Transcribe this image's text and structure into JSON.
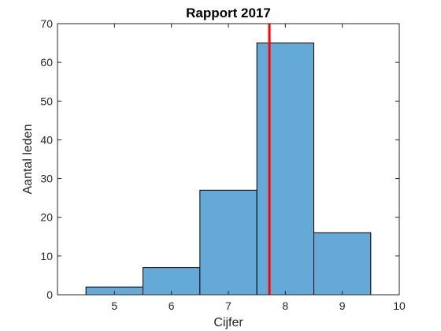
{
  "chart_data": {
    "type": "bar",
    "title": "Rapport 2017",
    "xlabel": "Cijfer",
    "ylabel": "Aantal leden",
    "xlim": [
      4,
      10
    ],
    "ylim": [
      0,
      70
    ],
    "xticks": [
      5,
      6,
      7,
      8,
      9,
      10
    ],
    "yticks": [
      0,
      10,
      20,
      30,
      40,
      50,
      60,
      70
    ],
    "bins": [
      {
        "x0": 4.5,
        "x1": 5.5,
        "value": 2
      },
      {
        "x0": 5.5,
        "x1": 6.5,
        "value": 7
      },
      {
        "x0": 6.5,
        "x1": 7.5,
        "value": 27
      },
      {
        "x0": 7.5,
        "x1": 8.5,
        "value": 65
      },
      {
        "x0": 8.5,
        "x1": 9.5,
        "value": 16
      }
    ],
    "reference_line": {
      "x": 7.72,
      "color": "#ff0000"
    },
    "bar_color": "#65a9d8",
    "grid": false,
    "box": true
  }
}
